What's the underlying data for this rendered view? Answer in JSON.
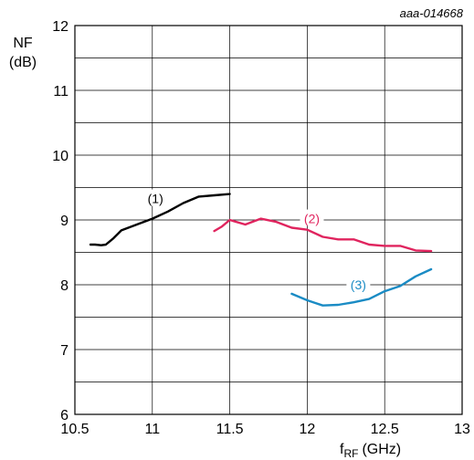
{
  "figure_id": "aaa-014668",
  "chart_data": {
    "type": "line",
    "xlabel": "f",
    "xlabel_sub": "RF",
    "xlabel_unit": "(GHz)",
    "ylabel": "NF",
    "ylabel_unit": "(dB)",
    "xlim": [
      10.5,
      13
    ],
    "ylim": [
      6,
      12
    ],
    "xticks": [
      "10.5",
      "11",
      "11.5",
      "12",
      "12.5",
      "13"
    ],
    "yticks": [
      "6",
      "7",
      "8",
      "9",
      "10",
      "11",
      "12"
    ],
    "grid": true,
    "series": [
      {
        "name": "(1)",
        "color": "#000000",
        "label_at": [
          11.02,
          9.33
        ],
        "x": [
          10.6,
          10.63,
          10.67,
          10.7,
          10.75,
          10.8,
          10.9,
          11.0,
          11.1,
          11.2,
          11.3,
          11.4,
          11.5
        ],
        "y": [
          8.62,
          8.62,
          8.61,
          8.62,
          8.72,
          8.84,
          8.93,
          9.02,
          9.13,
          9.26,
          9.36,
          9.38,
          9.4
        ]
      },
      {
        "name": "(2)",
        "color": "#e0245e",
        "label_at": [
          12.03,
          9.02
        ],
        "x": [
          11.4,
          11.45,
          11.5,
          11.6,
          11.7,
          11.8,
          11.9,
          12.0,
          12.1,
          12.2,
          12.3,
          12.4,
          12.5,
          12.6,
          12.7,
          12.8
        ],
        "y": [
          8.83,
          8.9,
          9.0,
          8.93,
          9.02,
          8.97,
          8.88,
          8.85,
          8.74,
          8.7,
          8.7,
          8.62,
          8.6,
          8.6,
          8.53,
          8.52
        ]
      },
      {
        "name": "(3)",
        "color": "#1a8bc4",
        "label_at": [
          12.33,
          8.0
        ],
        "x": [
          11.9,
          12.0,
          12.05,
          12.1,
          12.2,
          12.3,
          12.4,
          12.5,
          12.6,
          12.7,
          12.8
        ],
        "y": [
          7.86,
          7.76,
          7.72,
          7.68,
          7.69,
          7.73,
          7.78,
          7.9,
          7.98,
          8.13,
          8.24
        ]
      }
    ]
  }
}
